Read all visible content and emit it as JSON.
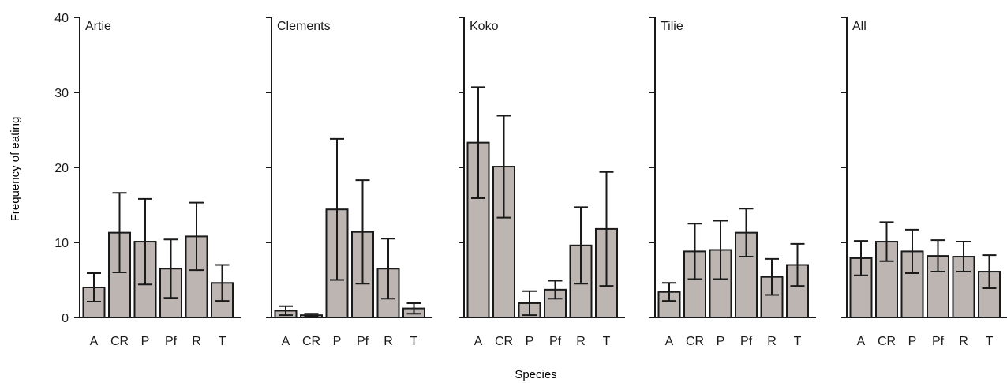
{
  "figure": {
    "ylabel": "Frequency of eating",
    "xlabel": "Species"
  },
  "colors": {
    "bar_fill": "#bdb5b2",
    "bar_stroke": "#1a1a1a",
    "axis": "#1a1a1a",
    "text": "#1a1a1a"
  },
  "chart_data": [
    {
      "type": "bar",
      "title": "Artie",
      "categories": [
        "A",
        "CR",
        "P",
        "Pf",
        "R",
        "T"
      ],
      "series": [
        {
          "values": [
            4.0,
            11.3,
            10.1,
            6.5,
            10.8,
            4.6
          ]
        }
      ],
      "error": [
        1.9,
        5.3,
        5.7,
        3.9,
        4.5,
        2.4
      ],
      "ylim": [
        0,
        40
      ],
      "yticks": [
        0,
        10,
        20,
        30,
        40
      ],
      "xlabel": "Species",
      "ylabel": "Frequency of eating",
      "grid": false
    },
    {
      "type": "bar",
      "title": "Clements",
      "categories": [
        "A",
        "CR",
        "P",
        "Pf",
        "R",
        "T"
      ],
      "series": [
        {
          "values": [
            0.9,
            0.3,
            14.4,
            11.4,
            6.5,
            1.2
          ]
        }
      ],
      "error": [
        0.6,
        0.2,
        9.4,
        6.9,
        4.0,
        0.7
      ],
      "ylim": [
        0,
        40
      ],
      "yticks": [
        0,
        10,
        20,
        30,
        40
      ],
      "xlabel": "Species",
      "ylabel": "Frequency of eating",
      "grid": false
    },
    {
      "type": "bar",
      "title": "Koko",
      "categories": [
        "A",
        "CR",
        "P",
        "Pf",
        "R",
        "T"
      ],
      "series": [
        {
          "values": [
            23.3,
            20.1,
            1.9,
            3.7,
            9.6,
            11.8
          ]
        }
      ],
      "error": [
        7.4,
        6.8,
        1.6,
        1.2,
        5.1,
        7.6
      ],
      "ylim": [
        0,
        40
      ],
      "yticks": [
        0,
        10,
        20,
        30,
        40
      ],
      "xlabel": "Species",
      "ylabel": "Frequency of eating",
      "grid": false
    },
    {
      "type": "bar",
      "title": "Tilie",
      "categories": [
        "A",
        "CR",
        "P",
        "Pf",
        "R",
        "T"
      ],
      "series": [
        {
          "values": [
            3.4,
            8.8,
            9.0,
            11.3,
            5.4,
            7.0
          ]
        }
      ],
      "error": [
        1.2,
        3.7,
        3.9,
        3.2,
        2.4,
        2.8
      ],
      "ylim": [
        0,
        40
      ],
      "yticks": [
        0,
        10,
        20,
        30,
        40
      ],
      "xlabel": "Species",
      "ylabel": "Frequency of eating",
      "grid": false
    },
    {
      "type": "bar",
      "title": "All",
      "categories": [
        "A",
        "CR",
        "P",
        "Pf",
        "R",
        "T"
      ],
      "series": [
        {
          "values": [
            7.9,
            10.1,
            8.8,
            8.2,
            8.1,
            6.1
          ]
        }
      ],
      "error": [
        2.3,
        2.6,
        2.9,
        2.1,
        2.0,
        2.2
      ],
      "ylim": [
        0,
        40
      ],
      "yticks": [
        0,
        10,
        20,
        30,
        40
      ],
      "xlabel": "Species",
      "ylabel": "Frequency of eating",
      "grid": false
    }
  ]
}
